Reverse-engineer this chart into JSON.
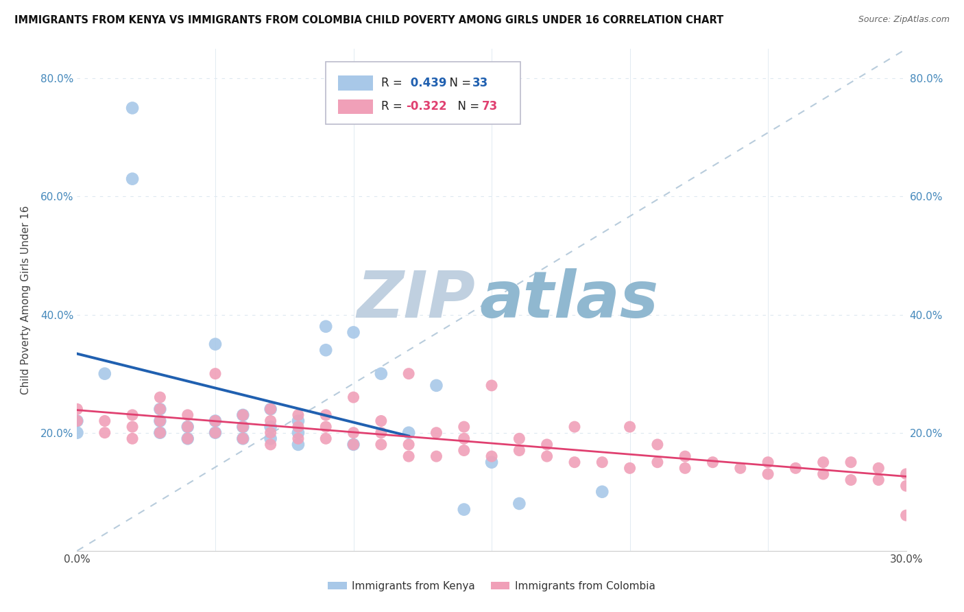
{
  "title": "IMMIGRANTS FROM KENYA VS IMMIGRANTS FROM COLOMBIA CHILD POVERTY AMONG GIRLS UNDER 16 CORRELATION CHART",
  "source": "Source: ZipAtlas.com",
  "ylabel": "Child Poverty Among Girls Under 16",
  "xlim": [
    0.0,
    0.3
  ],
  "ylim": [
    0.0,
    0.85
  ],
  "xticks": [
    0.0,
    0.05,
    0.1,
    0.15,
    0.2,
    0.25,
    0.3
  ],
  "yticks": [
    0.0,
    0.2,
    0.4,
    0.6,
    0.8
  ],
  "ytick_labels": [
    "",
    "20.0%",
    "40.0%",
    "60.0%",
    "80.0%"
  ],
  "kenya_R": 0.439,
  "kenya_N": 33,
  "colombia_R": -0.322,
  "colombia_N": 73,
  "kenya_color": "#a8c8e8",
  "kenya_line_color": "#2060b0",
  "colombia_color": "#f0a0b8",
  "colombia_line_color": "#e04070",
  "kenya_points_x": [
    0.0,
    0.0,
    0.01,
    0.02,
    0.02,
    0.03,
    0.03,
    0.03,
    0.04,
    0.04,
    0.05,
    0.05,
    0.05,
    0.06,
    0.06,
    0.06,
    0.07,
    0.07,
    0.07,
    0.08,
    0.08,
    0.08,
    0.09,
    0.09,
    0.1,
    0.1,
    0.11,
    0.12,
    0.13,
    0.14,
    0.15,
    0.16,
    0.19
  ],
  "kenya_points_y": [
    0.2,
    0.22,
    0.3,
    0.63,
    0.75,
    0.2,
    0.22,
    0.24,
    0.19,
    0.21,
    0.2,
    0.22,
    0.35,
    0.19,
    0.21,
    0.23,
    0.19,
    0.21,
    0.24,
    0.18,
    0.2,
    0.22,
    0.34,
    0.38,
    0.18,
    0.37,
    0.3,
    0.2,
    0.28,
    0.07,
    0.15,
    0.08,
    0.1
  ],
  "colombia_points_x": [
    0.0,
    0.0,
    0.01,
    0.01,
    0.02,
    0.02,
    0.02,
    0.03,
    0.03,
    0.03,
    0.03,
    0.04,
    0.04,
    0.04,
    0.05,
    0.05,
    0.05,
    0.06,
    0.06,
    0.06,
    0.07,
    0.07,
    0.07,
    0.07,
    0.08,
    0.08,
    0.08,
    0.09,
    0.09,
    0.09,
    0.1,
    0.1,
    0.1,
    0.11,
    0.11,
    0.11,
    0.12,
    0.12,
    0.12,
    0.13,
    0.13,
    0.14,
    0.14,
    0.14,
    0.15,
    0.15,
    0.16,
    0.16,
    0.17,
    0.17,
    0.18,
    0.18,
    0.19,
    0.2,
    0.2,
    0.21,
    0.21,
    0.22,
    0.22,
    0.23,
    0.24,
    0.25,
    0.25,
    0.26,
    0.27,
    0.27,
    0.28,
    0.28,
    0.29,
    0.29,
    0.3,
    0.3,
    0.3
  ],
  "colombia_points_y": [
    0.22,
    0.24,
    0.2,
    0.22,
    0.19,
    0.21,
    0.23,
    0.2,
    0.22,
    0.24,
    0.26,
    0.19,
    0.21,
    0.23,
    0.3,
    0.2,
    0.22,
    0.19,
    0.21,
    0.23,
    0.18,
    0.2,
    0.22,
    0.24,
    0.19,
    0.21,
    0.23,
    0.19,
    0.21,
    0.23,
    0.18,
    0.2,
    0.26,
    0.18,
    0.2,
    0.22,
    0.16,
    0.3,
    0.18,
    0.16,
    0.2,
    0.17,
    0.19,
    0.21,
    0.16,
    0.28,
    0.17,
    0.19,
    0.16,
    0.18,
    0.15,
    0.21,
    0.15,
    0.14,
    0.21,
    0.15,
    0.18,
    0.14,
    0.16,
    0.15,
    0.14,
    0.13,
    0.15,
    0.14,
    0.13,
    0.15,
    0.12,
    0.15,
    0.12,
    0.14,
    0.11,
    0.13,
    0.06
  ],
  "background_color": "#ffffff",
  "grid_color": "#dde8f0",
  "watermark_zip": "ZIP",
  "watermark_atlas": "atlas",
  "watermark_color_zip": "#c0d0e0",
  "watermark_color_atlas": "#90b8d0"
}
